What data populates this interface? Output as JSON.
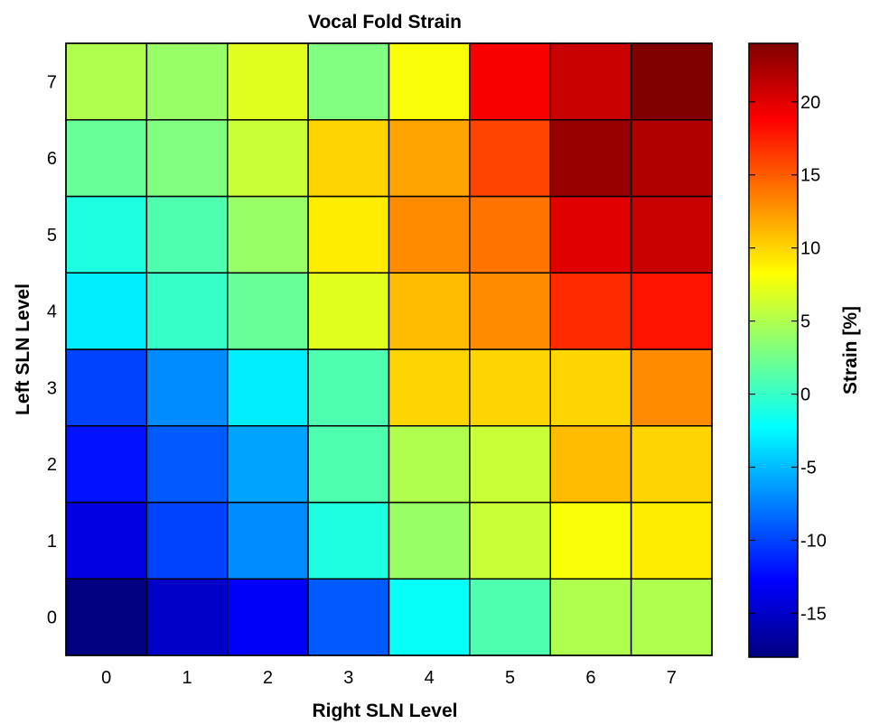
{
  "chart_data": {
    "type": "heatmap",
    "title": "Vocal Fold Strain",
    "xlabel": "Right SLN Level",
    "ylabel": "Left SLN Level",
    "x_categories": [
      "0",
      "1",
      "2",
      "3",
      "4",
      "5",
      "6",
      "7"
    ],
    "y_categories": [
      "0",
      "1",
      "2",
      "3",
      "4",
      "5",
      "6",
      "7"
    ],
    "values_by_left_level": [
      [
        -18,
        -15,
        -13,
        -9,
        -2,
        1,
        5,
        5
      ],
      [
        -14,
        -10,
        -7,
        -1,
        4,
        6,
        8,
        9
      ],
      [
        -12,
        -9,
        -6,
        1,
        5,
        6,
        11,
        10
      ],
      [
        -10,
        -7,
        -3,
        1,
        10,
        10,
        10,
        13
      ],
      [
        -3,
        0,
        2,
        7,
        11,
        13,
        17,
        18
      ],
      [
        -1,
        1,
        4,
        9,
        13,
        14,
        20,
        21
      ],
      [
        2,
        3,
        6,
        10,
        12,
        16,
        23,
        22
      ],
      [
        5,
        4,
        7,
        3,
        8,
        19,
        21,
        24
      ]
    ],
    "colormap": "jet",
    "colorbar": {
      "label": "Strain [%]",
      "ticks": [
        "-15",
        "-10",
        "-5",
        "0",
        "5",
        "10",
        "15",
        "20"
      ],
      "range": [
        -18,
        24
      ]
    },
    "grid": true,
    "legend": "colorbar-right"
  }
}
